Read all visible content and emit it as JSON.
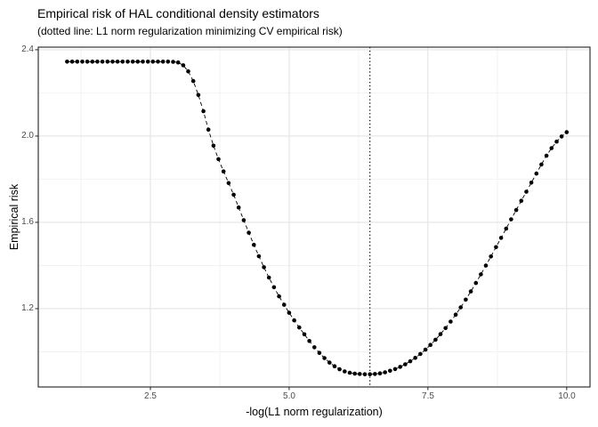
{
  "title": "Empirical risk of HAL conditional density estimators",
  "subtitle": "(dotted line: L1 norm regularization minimizing CV empirical risk)",
  "colors": {
    "background": "#ffffff",
    "panel_border": "#333333",
    "grid_major": "#e4e4e4",
    "grid_minor": "#f2f2f2",
    "series": "#000000",
    "tick_label": "#4d4d4d",
    "vline": "#000000"
  },
  "chart_data": {
    "type": "scatter",
    "title": "Empirical risk of HAL conditional density estimators",
    "subtitle": "(dotted line: L1 norm regularization minimizing CV empirical risk)",
    "xlabel": "-log(L1 norm regularization)",
    "ylabel": "Empirical risk",
    "xlim": [
      0.48,
      10.42
    ],
    "ylim": [
      0.837,
      2.412
    ],
    "x_major_ticks": [
      2.5,
      5.0,
      7.5,
      10.0
    ],
    "x_tick_labels": [
      "2.5",
      "5.0",
      "7.5",
      "10.0"
    ],
    "x_minor_ticks": [
      1.25,
      3.75,
      6.25,
      8.75
    ],
    "y_major_ticks": [
      1.2,
      1.6,
      2.0,
      2.4
    ],
    "y_tick_labels": [
      "1.2",
      "1.6",
      "2.0",
      "2.4"
    ],
    "y_minor_ticks": [
      1.0,
      1.4,
      1.8,
      2.2
    ],
    "grid": true,
    "legend": false,
    "vline_x": 6.455,
    "vline_style": "dotted",
    "line_style": "dashed",
    "marker": "filled-circle",
    "series": [
      {
        "x": [
          1.0,
          1.091,
          1.182,
          1.273,
          1.364,
          1.455,
          1.545,
          1.636,
          1.727,
          1.818,
          1.909,
          2.0,
          2.091,
          2.182,
          2.273,
          2.364,
          2.455,
          2.545,
          2.636,
          2.727,
          2.818,
          2.909,
          3.0,
          3.091,
          3.182,
          3.273,
          3.364,
          3.455,
          3.545,
          3.636,
          3.727,
          3.818,
          3.909,
          4.0,
          4.091,
          4.182,
          4.273,
          4.364,
          4.455,
          4.545,
          4.636,
          4.727,
          4.818,
          4.909,
          5.0,
          5.091,
          5.182,
          5.273,
          5.364,
          5.455,
          5.545,
          5.636,
          5.727,
          5.818,
          5.909,
          6.0,
          6.091,
          6.182,
          6.273,
          6.364,
          6.455,
          6.545,
          6.636,
          6.727,
          6.818,
          6.909,
          7.0,
          7.091,
          7.182,
          7.273,
          7.364,
          7.455,
          7.545,
          7.636,
          7.727,
          7.818,
          7.909,
          8.0,
          8.091,
          8.182,
          8.273,
          8.364,
          8.455,
          8.545,
          8.636,
          8.727,
          8.818,
          8.909,
          9.0,
          9.091,
          9.182,
          9.273,
          9.364,
          9.455,
          9.545,
          9.636,
          9.727,
          9.818,
          9.909,
          10.0
        ],
        "y": [
          2.345,
          2.345,
          2.345,
          2.345,
          2.345,
          2.345,
          2.345,
          2.345,
          2.345,
          2.345,
          2.345,
          2.345,
          2.345,
          2.345,
          2.345,
          2.345,
          2.345,
          2.345,
          2.345,
          2.345,
          2.345,
          2.344,
          2.341,
          2.328,
          2.3,
          2.255,
          2.19,
          2.115,
          2.03,
          1.955,
          1.893,
          1.836,
          1.782,
          1.728,
          1.669,
          1.61,
          1.552,
          1.496,
          1.443,
          1.392,
          1.344,
          1.299,
          1.257,
          1.218,
          1.181,
          1.146,
          1.113,
          1.081,
          1.05,
          1.021,
          0.995,
          0.971,
          0.95,
          0.933,
          0.919,
          0.909,
          0.903,
          0.899,
          0.897,
          0.896,
          0.896,
          0.897,
          0.9,
          0.905,
          0.912,
          0.92,
          0.93,
          0.942,
          0.956,
          0.972,
          0.99,
          1.01,
          1.032,
          1.056,
          1.082,
          1.11,
          1.14,
          1.172,
          1.206,
          1.242,
          1.28,
          1.319,
          1.359,
          1.4,
          1.442,
          1.485,
          1.528,
          1.571,
          1.614,
          1.657,
          1.7,
          1.742,
          1.784,
          1.826,
          1.868,
          1.909,
          1.944,
          1.974,
          1.998,
          2.018
        ]
      }
    ]
  }
}
